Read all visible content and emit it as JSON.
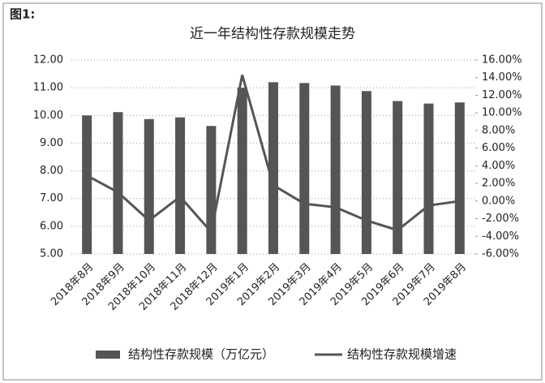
{
  "chart_data": {
    "type": "bar_line",
    "figure_label": "图1:",
    "title": "近一年结构性存款规模走势",
    "categories": [
      "2018年8月",
      "2018年9月",
      "2018年10月",
      "2018年11月",
      "2018年12月",
      "2019年1月",
      "2019年2月",
      "2019年3月",
      "2019年4月",
      "2019年5月",
      "2019年6月",
      "2019年7月",
      "2019年8月"
    ],
    "series": [
      {
        "name": "结构性存款规模（万亿元）",
        "type": "bar",
        "color": "#555555",
        "values": [
          10.0,
          10.12,
          9.87,
          9.93,
          9.62,
          11.0,
          11.2,
          11.17,
          11.08,
          10.88,
          10.52,
          10.43,
          10.47
        ]
      },
      {
        "name": "结构性存款规模增速",
        "type": "line",
        "axis": "y2",
        "color": "#555555",
        "values": [
          2.9,
          1.0,
          -2.2,
          0.5,
          -3.5,
          14.3,
          1.8,
          -0.3,
          -0.7,
          -2.2,
          -3.3,
          -0.5,
          0.0
        ]
      }
    ],
    "ylim": [
      5,
      12
    ],
    "yticks": [
      {
        "value": 5,
        "label": "5.00"
      },
      {
        "value": 6,
        "label": "6.00"
      },
      {
        "value": 7,
        "label": "7.00"
      },
      {
        "value": 8,
        "label": "8.00"
      },
      {
        "value": 9,
        "label": "9.00"
      },
      {
        "value": 10,
        "label": "10.00"
      },
      {
        "value": 11,
        "label": "11.00"
      },
      {
        "value": 12,
        "label": "12.00"
      }
    ],
    "y2lim": [
      -6,
      16
    ],
    "y2ticks": [
      {
        "value": -6,
        "label": "-6.00%"
      },
      {
        "value": -4,
        "label": "-4.00%"
      },
      {
        "value": -2,
        "label": "-2.00%"
      },
      {
        "value": 0,
        "label": "0.00%"
      },
      {
        "value": 2,
        "label": "2.00%"
      },
      {
        "value": 4,
        "label": "4.00%"
      },
      {
        "value": 6,
        "label": "6.00%"
      },
      {
        "value": 8,
        "label": "8.00%"
      },
      {
        "value": 10,
        "label": "10.00%"
      },
      {
        "value": 12,
        "label": "12.00%"
      },
      {
        "value": 14,
        "label": "14.00%"
      },
      {
        "value": 16,
        "label": "16.00%"
      }
    ],
    "grid": true,
    "legend": "bottom"
  }
}
